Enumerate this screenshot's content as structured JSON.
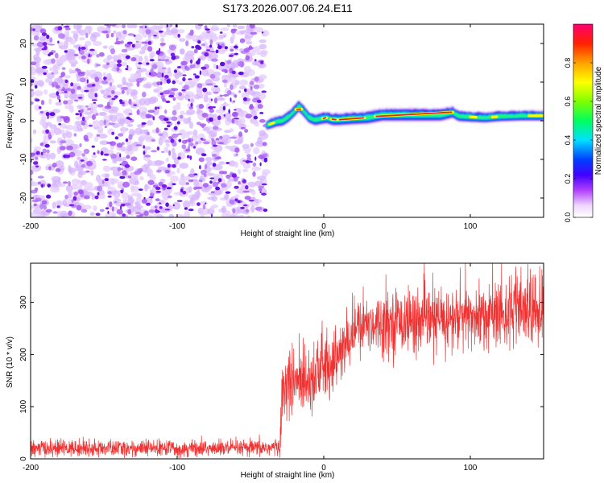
{
  "figure": {
    "title": "S173.2026.007.06.24.E11"
  },
  "chart_data": [
    {
      "type": "heatmap",
      "title": "S173.2026.007.06.24.E11",
      "xlabel": "Height of straight line (km)",
      "ylabel": "Frequency (Hz)",
      "xlim": [
        -200,
        150
      ],
      "ylim": [
        -25,
        25
      ],
      "x_ticks": [
        -200,
        -100,
        0,
        100
      ],
      "x_tick_labels": [
        "-200",
        "-100",
        "0",
        "100"
      ],
      "y_ticks": [
        -20,
        -10,
        0,
        10,
        20
      ],
      "y_tick_labels": [
        "-20",
        "-10",
        "0",
        "10",
        "20"
      ],
      "noise_region_x": [
        -200,
        -39
      ],
      "ridge": {
        "x": [
          -39,
          -36,
          -32,
          -28,
          -24,
          -20,
          -17,
          -14,
          -10,
          -6,
          -2,
          2,
          6,
          10,
          20,
          30,
          40,
          60,
          80,
          88,
          92,
          100,
          110,
          120,
          135,
          150
        ],
        "y": [
          -1.2,
          -0.8,
          -0.2,
          0.0,
          1.0,
          2.5,
          3.8,
          2.6,
          0.8,
          0.2,
          0.5,
          0.8,
          0.3,
          0.3,
          0.6,
          0.8,
          1.5,
          1.5,
          1.5,
          2.2,
          1.2,
          1.0,
          0.8,
          1.1,
          1.3,
          1.3
        ],
        "amp": [
          0.3,
          0.45,
          0.55,
          0.6,
          0.6,
          0.65,
          0.7,
          0.6,
          0.6,
          0.7,
          0.75,
          0.8,
          0.85,
          0.85,
          0.9,
          0.92,
          0.95,
          0.95,
          0.9,
          0.75,
          0.6,
          0.55,
          0.5,
          0.5,
          0.5,
          0.5
        ]
      },
      "colorbar": {
        "label": "Normalized spectral amplitude",
        "range": [
          0,
          1
        ],
        "ticks": [
          0.0,
          0.2,
          0.4,
          0.6,
          0.8
        ],
        "tick_labels": [
          "0.0",
          "0.2",
          "0.4",
          "0.6",
          "0.8"
        ]
      }
    },
    {
      "type": "line",
      "xlabel": "Height of straight line (km)",
      "ylabel": "SNR (10 * v/v)",
      "xlim": [
        -200,
        150
      ],
      "ylim": [
        0,
        375
      ],
      "x_ticks": [
        -200,
        -100,
        0,
        100
      ],
      "x_tick_labels": [
        "-200",
        "-100",
        "0",
        "100"
      ],
      "y_ticks": [
        0,
        100,
        200,
        300
      ],
      "y_tick_labels": [
        "0",
        "100",
        "200",
        "300"
      ],
      "series": [
        {
          "name": "SNR",
          "color": "#ee3333",
          "x": [
            -200,
            -150,
            -100,
            -50,
            -30,
            -28,
            -20,
            -10,
            0,
            10,
            15,
            20,
            30,
            50,
            80,
            100,
            120,
            150
          ],
          "mean": [
            20,
            20,
            20,
            20,
            22,
            140,
            150,
            160,
            175,
            195,
            215,
            245,
            260,
            265,
            265,
            270,
            280,
            285
          ],
          "spread": [
            8,
            8,
            8,
            8,
            9,
            35,
            35,
            35,
            35,
            30,
            28,
            28,
            28,
            30,
            32,
            32,
            35,
            38
          ]
        }
      ]
    }
  ]
}
